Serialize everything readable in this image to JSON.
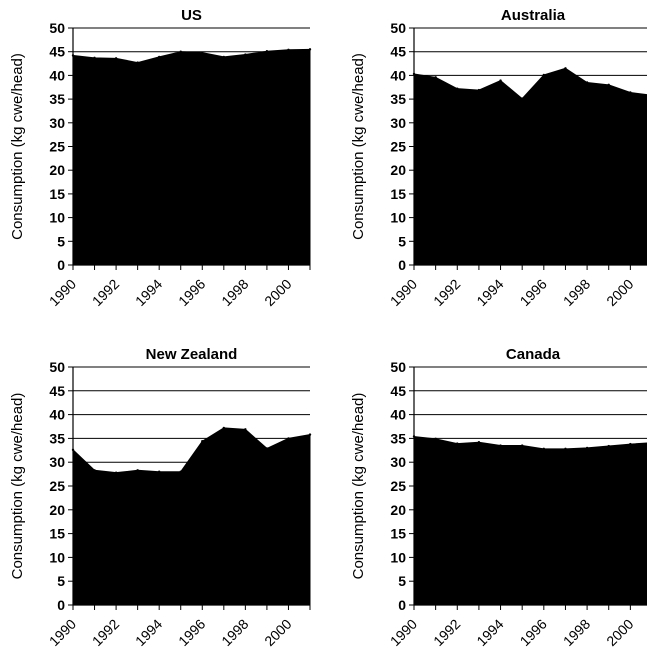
{
  "chart_data": [
    {
      "type": "area",
      "title": "US",
      "ylabel": "Consumption (kg cwe/head)",
      "xlabel": "",
      "x": [
        1990,
        1991,
        1992,
        1993,
        1994,
        1995,
        1996,
        1997,
        1998,
        1999,
        2000,
        2001
      ],
      "values": [
        44.2,
        43.7,
        43.6,
        42.7,
        43.9,
        45.0,
        44.8,
        43.9,
        44.4,
        45.1,
        45.4,
        45.5
      ],
      "xticks": [
        "1990",
        "1992",
        "1994",
        "1996",
        "1998",
        "2000"
      ],
      "yticks": [
        "0",
        "5",
        "10",
        "15",
        "20",
        "25",
        "30",
        "35",
        "40",
        "45",
        "50"
      ],
      "ylim": [
        0,
        50
      ],
      "grid": "horizontal",
      "fill_color": "#000000"
    },
    {
      "type": "area",
      "title": "Australia",
      "ylabel": "Consumption (kg cwe/head)",
      "xlabel": "",
      "x": [
        1990,
        1991,
        1992,
        1993,
        1994,
        1995,
        1996,
        1997,
        1998,
        1999,
        2000,
        2001
      ],
      "values": [
        40.3,
        39.6,
        37.2,
        36.9,
        38.9,
        35.1,
        40.1,
        41.5,
        38.5,
        38.0,
        36.4,
        35.8
      ],
      "xticks": [
        "1990",
        "1992",
        "1994",
        "1996",
        "1998",
        "2000"
      ],
      "yticks": [
        "0",
        "5",
        "10",
        "15",
        "20",
        "25",
        "30",
        "35",
        "40",
        "45",
        "50"
      ],
      "ylim": [
        0,
        50
      ],
      "grid": "horizontal",
      "fill_color": "#000000"
    },
    {
      "type": "area",
      "title": "New Zealand",
      "ylabel": "Consumption (kg cwe/head)",
      "xlabel": "",
      "x": [
        1990,
        1991,
        1992,
        1993,
        1994,
        1995,
        1996,
        1997,
        1998,
        1999,
        2000,
        2001
      ],
      "values": [
        32.6,
        28.3,
        27.8,
        28.3,
        28.0,
        28.0,
        34.4,
        37.2,
        36.9,
        32.9,
        35.0,
        35.8
      ],
      "xticks": [
        "1990",
        "1992",
        "1994",
        "1996",
        "1998",
        "2000"
      ],
      "yticks": [
        "0",
        "5",
        "10",
        "15",
        "20",
        "25",
        "30",
        "35",
        "40",
        "45",
        "50"
      ],
      "ylim": [
        0,
        50
      ],
      "grid": "horizontal",
      "fill_color": "#000000"
    },
    {
      "type": "area",
      "title": "Canada",
      "ylabel": "Consumption (kg cwe/head)",
      "xlabel": "",
      "x": [
        1990,
        1991,
        1992,
        1993,
        1994,
        1995,
        1996,
        1997,
        1998,
        1999,
        2000,
        2001
      ],
      "values": [
        35.4,
        34.9,
        33.9,
        34.2,
        33.5,
        33.5,
        32.8,
        32.8,
        33.0,
        33.4,
        33.8,
        34.1
      ],
      "xticks": [
        "1990",
        "1992",
        "1994",
        "1996",
        "1998",
        "2000"
      ],
      "yticks": [
        "0",
        "5",
        "10",
        "15",
        "20",
        "25",
        "30",
        "35",
        "40",
        "45",
        "50"
      ],
      "ylim": [
        0,
        50
      ],
      "grid": "horizontal",
      "fill_color": "#000000"
    }
  ]
}
